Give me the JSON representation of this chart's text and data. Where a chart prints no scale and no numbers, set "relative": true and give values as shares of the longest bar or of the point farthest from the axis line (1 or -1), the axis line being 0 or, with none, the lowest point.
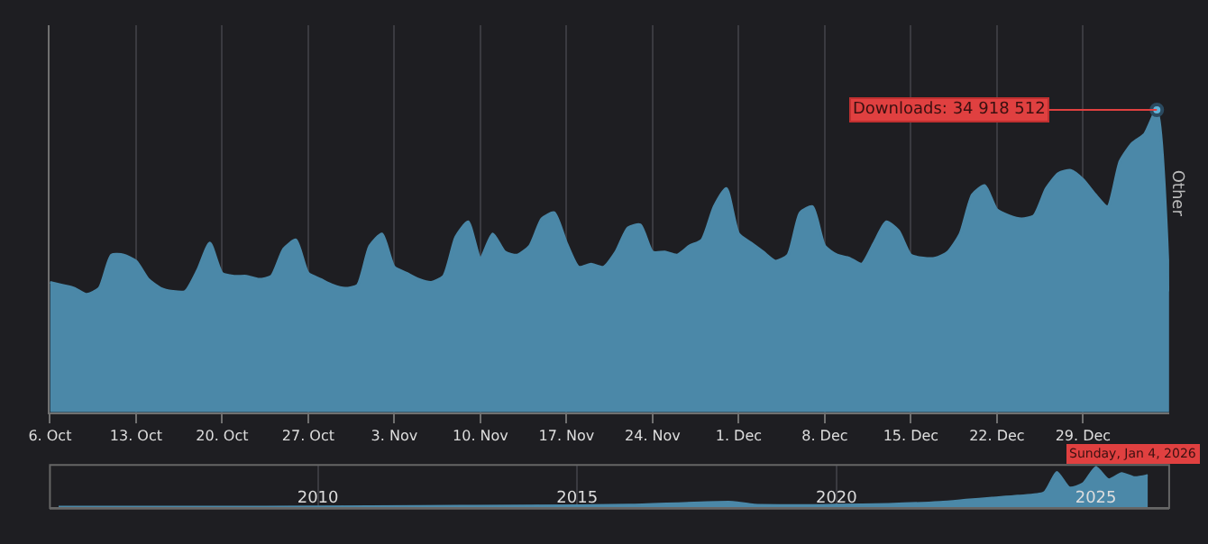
{
  "chart_data": [
    {
      "type": "area",
      "x": [
        "2025-10-06",
        "2025-10-07",
        "2025-10-08",
        "2025-10-09",
        "2025-10-10",
        "2025-10-11",
        "2025-10-12",
        "2025-10-13",
        "2025-10-14",
        "2025-10-15",
        "2025-10-16",
        "2025-10-17",
        "2025-10-18",
        "2025-10-19",
        "2025-10-20",
        "2025-10-21",
        "2025-10-22",
        "2025-10-23",
        "2025-10-24",
        "2025-10-25",
        "2025-10-26",
        "2025-10-27",
        "2025-10-28",
        "2025-10-29",
        "2025-10-30",
        "2025-10-31",
        "2025-11-01",
        "2025-11-02",
        "2025-11-03",
        "2025-11-04",
        "2025-11-05",
        "2025-11-06",
        "2025-11-07",
        "2025-11-08",
        "2025-11-09",
        "2025-11-10",
        "2025-11-11",
        "2025-11-12",
        "2025-11-13",
        "2025-11-14",
        "2025-11-15",
        "2025-11-16",
        "2025-11-17",
        "2025-11-18",
        "2025-11-19",
        "2025-11-20",
        "2025-11-21",
        "2025-11-22",
        "2025-11-23",
        "2025-11-24",
        "2025-11-25",
        "2025-11-26",
        "2025-11-27",
        "2025-11-28",
        "2025-11-29",
        "2025-11-30",
        "2025-12-01",
        "2025-12-02",
        "2025-12-03",
        "2025-12-04",
        "2025-12-05",
        "2025-12-06",
        "2025-12-07",
        "2025-12-08",
        "2025-12-09",
        "2025-12-10",
        "2025-12-11",
        "2025-12-12",
        "2025-12-13",
        "2025-12-14",
        "2025-12-15",
        "2025-12-16",
        "2025-12-17",
        "2025-12-18",
        "2025-12-19",
        "2025-12-20",
        "2025-12-21",
        "2025-12-22",
        "2025-12-23",
        "2025-12-24",
        "2025-12-25",
        "2025-12-26",
        "2025-12-27",
        "2025-12-28",
        "2025-12-29",
        "2025-12-30",
        "2025-12-31",
        "2026-01-01",
        "2026-01-02",
        "2026-01-03",
        "2026-01-04",
        "2026-01-05"
      ],
      "relative": true,
      "series": [
        {
          "color": "#4b88a8",
          "values": [
            0.43,
            0.42,
            0.41,
            0.39,
            0.41,
            0.52,
            0.52,
            0.5,
            0.44,
            0.41,
            0.4,
            0.4,
            0.47,
            0.56,
            0.46,
            0.45,
            0.45,
            0.44,
            0.45,
            0.54,
            0.57,
            0.46,
            0.44,
            0.42,
            0.41,
            0.42,
            0.55,
            0.59,
            0.48,
            0.46,
            0.44,
            0.43,
            0.45,
            0.58,
            0.63,
            0.51,
            0.59,
            0.53,
            0.52,
            0.55,
            0.64,
            0.66,
            0.56,
            0.48,
            0.49,
            0.48,
            0.53,
            0.61,
            0.62,
            0.53,
            0.53,
            0.52,
            0.55,
            0.57,
            0.68,
            0.74,
            0.59,
            0.56,
            0.53,
            0.5,
            0.52,
            0.66,
            0.68,
            0.55,
            0.52,
            0.51,
            0.49,
            0.56,
            0.63,
            0.6,
            0.52,
            0.51,
            0.51,
            0.53,
            0.59,
            0.72,
            0.75,
            0.67,
            0.65,
            0.64,
            0.65,
            0.74,
            0.79,
            0.8,
            0.77,
            0.72,
            0.68,
            0.83,
            0.89,
            0.92,
            1,
            0.4
          ]
        }
      ],
      "xlim": [
        "2025-10-06",
        "2026-01-05"
      ],
      "xticks": [
        {
          "value": "2025-10-06",
          "label": "6. Oct"
        },
        {
          "value": "2025-10-13",
          "label": "13. Oct"
        },
        {
          "value": "2025-10-20",
          "label": "20. Oct"
        },
        {
          "value": "2025-10-27",
          "label": "27. Oct"
        },
        {
          "value": "2025-11-03",
          "label": "3. Nov"
        },
        {
          "value": "2025-11-10",
          "label": "10. Nov"
        },
        {
          "value": "2025-11-17",
          "label": "17. Nov"
        },
        {
          "value": "2025-11-24",
          "label": "24. Nov"
        },
        {
          "value": "2025-12-01",
          "label": "1. Dec"
        },
        {
          "value": "2025-12-08",
          "label": "8. Dec"
        },
        {
          "value": "2025-12-15",
          "label": "15. Dec"
        },
        {
          "value": "2025-12-22",
          "label": "22. Dec"
        },
        {
          "value": "2025-12-29",
          "label": "29. Dec"
        }
      ],
      "grid": "x",
      "marker": "none",
      "annotations": [
        {
          "text": "Downloads: 34 918 512",
          "x": "2026-01-04",
          "y": 1
        },
        "Sunday, Jan 4, 2026",
        "Other"
      ]
    },
    {
      "type": "area",
      "relative": true,
      "x": [
        "2005-01",
        "2008-01",
        "2010-01",
        "2012-01",
        "2014-01",
        "2016-01",
        "2018-01",
        "2018-06",
        "2020-01",
        "2021-01",
        "2022-01",
        "2022-07",
        "2023-01",
        "2023-07",
        "2024-01",
        "2024-04",
        "2024-07",
        "2024-10",
        "2025-01",
        "2025-04",
        "2025-07",
        "2025-10",
        "2026-01"
      ],
      "series": [
        {
          "color": "#4b88a8",
          "values": [
            0.03,
            0.03,
            0.04,
            0.05,
            0.06,
            0.08,
            0.15,
            0.08,
            0.08,
            0.1,
            0.15,
            0.2,
            0.25,
            0.3,
            0.38,
            0.88,
            0.5,
            0.6,
            1,
            0.7,
            0.85,
            0.75,
            0.8
          ]
        }
      ],
      "xlim": [
        "2004-11",
        "2026-06"
      ],
      "xticks": [
        {
          "value": "2010-01",
          "label": "2010"
        },
        {
          "value": "2015-01",
          "label": "2015"
        },
        {
          "value": "2020-01",
          "label": "2020"
        },
        {
          "value": "2025-01",
          "label": "2025"
        }
      ],
      "tick_labels": "x",
      "grid": "x",
      "marker": "none"
    }
  ]
}
